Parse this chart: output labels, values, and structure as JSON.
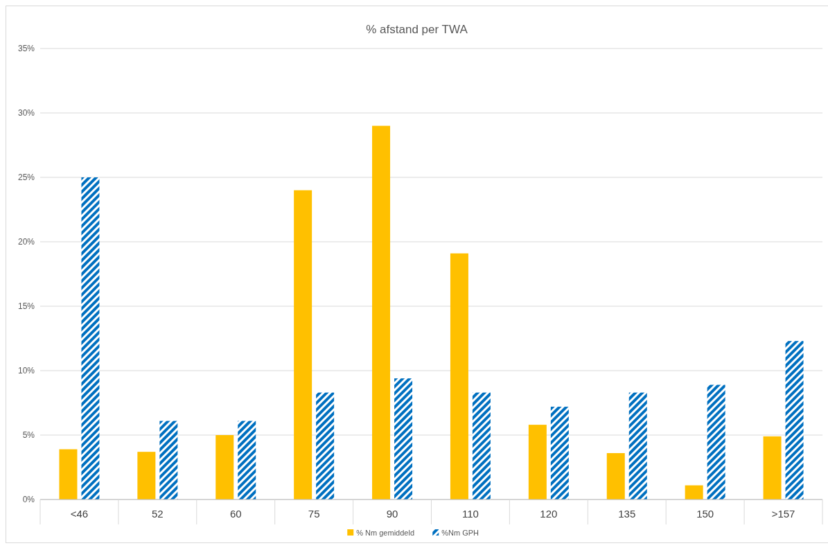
{
  "chart_data": {
    "type": "bar",
    "title": "% afstand per TWA",
    "categories": [
      "<46",
      "52",
      "60",
      "75",
      "90",
      "110",
      "120",
      "135",
      "150",
      ">157"
    ],
    "series": [
      {
        "name": "% Nm gemiddeld",
        "color": "#ffc000",
        "values": [
          3.9,
          3.7,
          5.0,
          24.0,
          29.0,
          19.1,
          5.8,
          3.6,
          1.1,
          4.9
        ]
      },
      {
        "name": "%Nm GPH",
        "color": "#0070c0",
        "values": [
          25.0,
          6.1,
          6.1,
          8.3,
          9.4,
          8.3,
          7.2,
          8.3,
          8.9,
          12.3
        ]
      }
    ],
    "ylim": [
      0,
      35
    ],
    "yticks": [
      {
        "value": 0,
        "label": "0%"
      },
      {
        "value": 5,
        "label": "5%"
      },
      {
        "value": 10,
        "label": "10%"
      },
      {
        "value": 15,
        "label": "15%"
      },
      {
        "value": 20,
        "label": "20%"
      },
      {
        "value": 25,
        "label": "25%"
      },
      {
        "value": 30,
        "label": "30%"
      },
      {
        "value": 35,
        "label": "35%"
      }
    ],
    "grid": "y",
    "legend": "bottom"
  }
}
